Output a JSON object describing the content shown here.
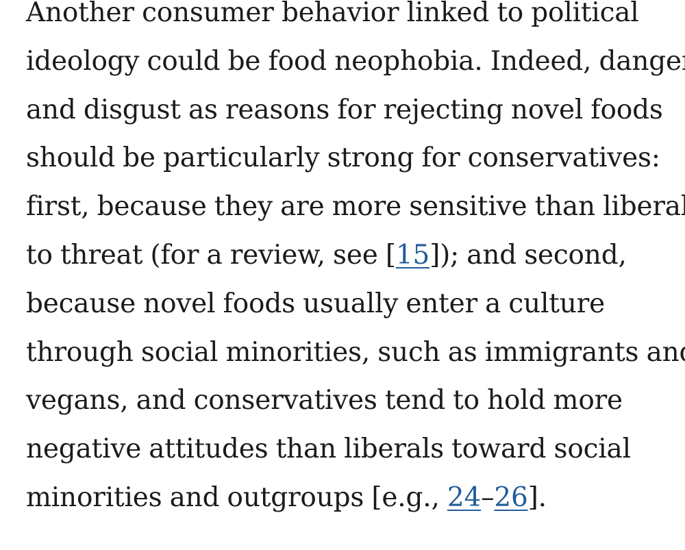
{
  "paragraph": {
    "lines": [
      "Another consumer behavior linked to political",
      "ideology could be food neophobia. Indeed, danger",
      "and disgust as reasons for rejecting novel foods",
      "should be particularly strong for conservatives:",
      "first, because they are more sensitive than liberals"
    ],
    "line6_before": "to threat (for a review, see [",
    "line6_after": "]); and second,",
    "line7": "because novel foods usually enter a culture",
    "line8": "through social minorities, such as immigrants and",
    "line9": "vegans, and conservatives tend to hold more",
    "line10": "negative attitudes than liberals toward social",
    "line11_before": "minorities and outgroups [e.g., ",
    "line11_dash": "–",
    "line11_after": "]."
  },
  "references": {
    "ref15": "15",
    "ref24": "24",
    "ref26": "26"
  },
  "colors": {
    "text": "#1b1b1b",
    "link": "#1f5c99",
    "background": "#ffffff"
  }
}
